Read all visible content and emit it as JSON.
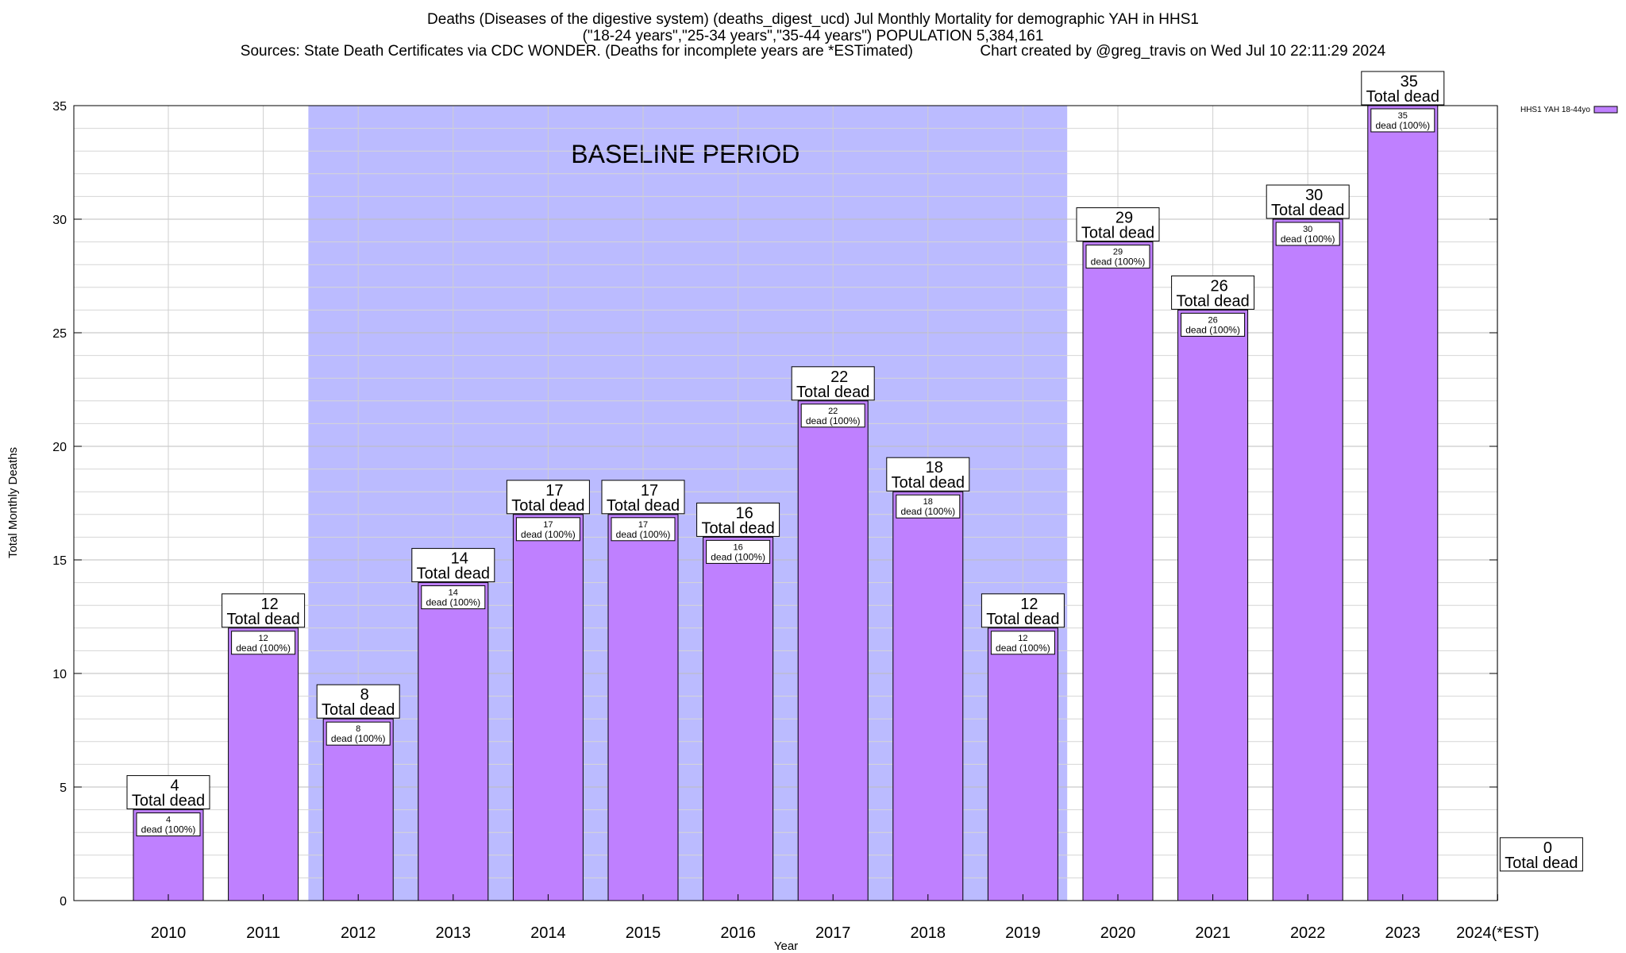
{
  "titles": {
    "line1": "Deaths (Diseases of the digestive system) (deaths_digest_ucd) Jul Monthly Mortality for demographic YAH in HHS1",
    "line2": "(\"18-24 years\",\"25-34 years\",\"35-44 years\") POPULATION 5,384,161",
    "line3": "Sources: State Death Certificates via CDC WONDER. (Deaths for incomplete years are *ESTimated)                Chart created by @greg_travis on Wed Jul 10 22:11:29 2024"
  },
  "colors": {
    "bar": "#bf80ff",
    "baseline_band": "#bbbbff",
    "grid": "#c8c8c8"
  },
  "chart_data": {
    "type": "bar",
    "categories": [
      "2010",
      "2011",
      "2012",
      "2013",
      "2014",
      "2015",
      "2016",
      "2017",
      "2018",
      "2019",
      "2020",
      "2021",
      "2022",
      "2023",
      "2024(*EST)"
    ],
    "series": [
      {
        "name": "HHS1 YAH 18-44yo",
        "values": [
          4,
          12,
          8,
          14,
          17,
          17,
          16,
          22,
          18,
          12,
          29,
          26,
          30,
          35,
          0
        ]
      }
    ],
    "xlabel": "Year",
    "ylabel": "Total Monthly Deaths",
    "ylim": [
      0,
      35
    ],
    "yticks": [
      0,
      5,
      10,
      15,
      20,
      25,
      30,
      35
    ],
    "grid": true,
    "legend": "top-right",
    "total_label": "Total dead",
    "inner_label": "dead (100%)",
    "baseline": {
      "label": "BASELINE PERIOD",
      "from": "2012",
      "to": "2019"
    }
  }
}
